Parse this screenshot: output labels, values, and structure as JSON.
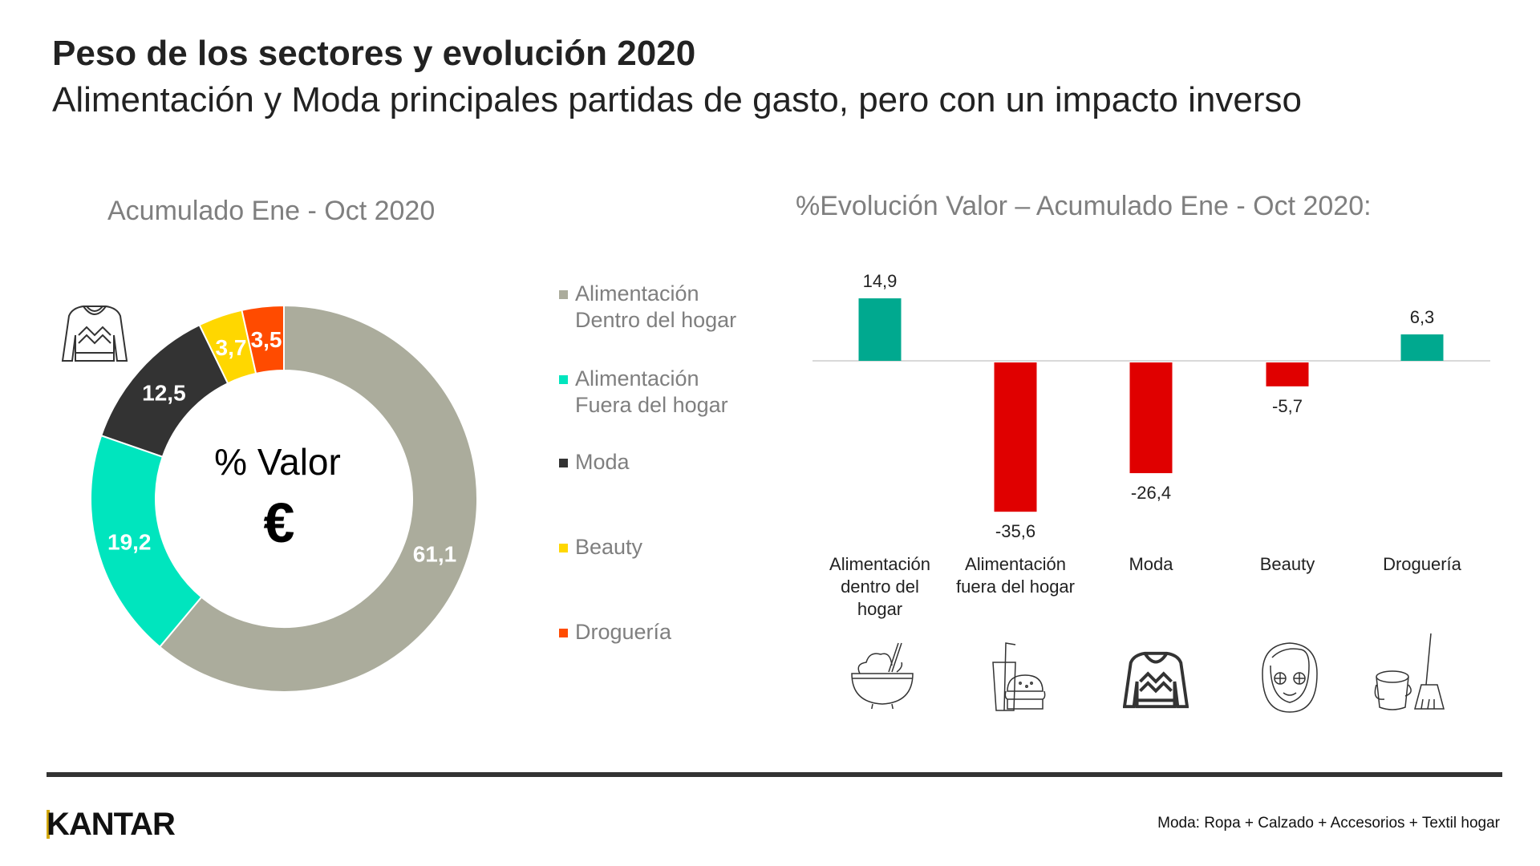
{
  "header": {
    "title": "Peso de los sectores y evolución 2020",
    "subtitle": "Alimentación y Moda principales partidas de gasto, pero con un impacto inverso"
  },
  "chart_data": [
    {
      "type": "pie",
      "variant": "donut",
      "title": "Acumulado Ene - Oct 2020",
      "center_label": "% Valor",
      "center_symbol": "€",
      "categories": [
        "Alimentación Dentro del hogar",
        "Alimentación Fuera del hogar",
        "Moda",
        "Beauty",
        "Droguería"
      ],
      "values": [
        61.1,
        19.2,
        12.5,
        3.7,
        3.5
      ],
      "value_labels": [
        "61,1",
        "19,2",
        "12,5",
        "3,7",
        "3,5"
      ],
      "colors": [
        "#ABAC9C",
        "#00E5BE",
        "#333333",
        "#FFD700",
        "#FF4B00"
      ],
      "legend": {
        "placement": "right",
        "items": [
          {
            "line1": "Alimentación",
            "line2": "Dentro del hogar"
          },
          {
            "line1": "Alimentación",
            "line2": "Fuera del hogar"
          },
          {
            "line1": "Moda",
            "line2": ""
          },
          {
            "line1": "Beauty",
            "line2": ""
          },
          {
            "line1": "Droguería",
            "line2": ""
          }
        ]
      },
      "icon": "sweater-icon"
    },
    {
      "type": "bar",
      "title": "%Evolución Valor – Acumulado Ene - Oct 2020:",
      "categories": [
        "Alimentación dentro del hogar",
        "Alimentación fuera del hogar",
        "Moda",
        "Beauty",
        "Droguería"
      ],
      "category_lines": [
        [
          "Alimentación",
          "dentro del",
          "hogar"
        ],
        [
          "Alimentación",
          "fuera del hogar"
        ],
        [
          "Moda"
        ],
        [
          "Beauty"
        ],
        [
          "Droguería"
        ]
      ],
      "values": [
        14.9,
        -35.6,
        -26.4,
        -5.7,
        6.3
      ],
      "value_labels": [
        "14,9",
        "-35,6",
        "-26,4",
        "-5,7",
        "6,3"
      ],
      "positive_color": "#00A98F",
      "negative_color": "#E00000",
      "grid": false,
      "icons": [
        "rice-bowl-icon",
        "drink-burger-icon",
        "sweater-icon",
        "face-mask-icon",
        "bucket-broom-icon"
      ]
    }
  ],
  "footer": {
    "logo": "KANTAR",
    "note": "Moda: Ropa + Calzado + Accesorios + Textil hogar"
  }
}
